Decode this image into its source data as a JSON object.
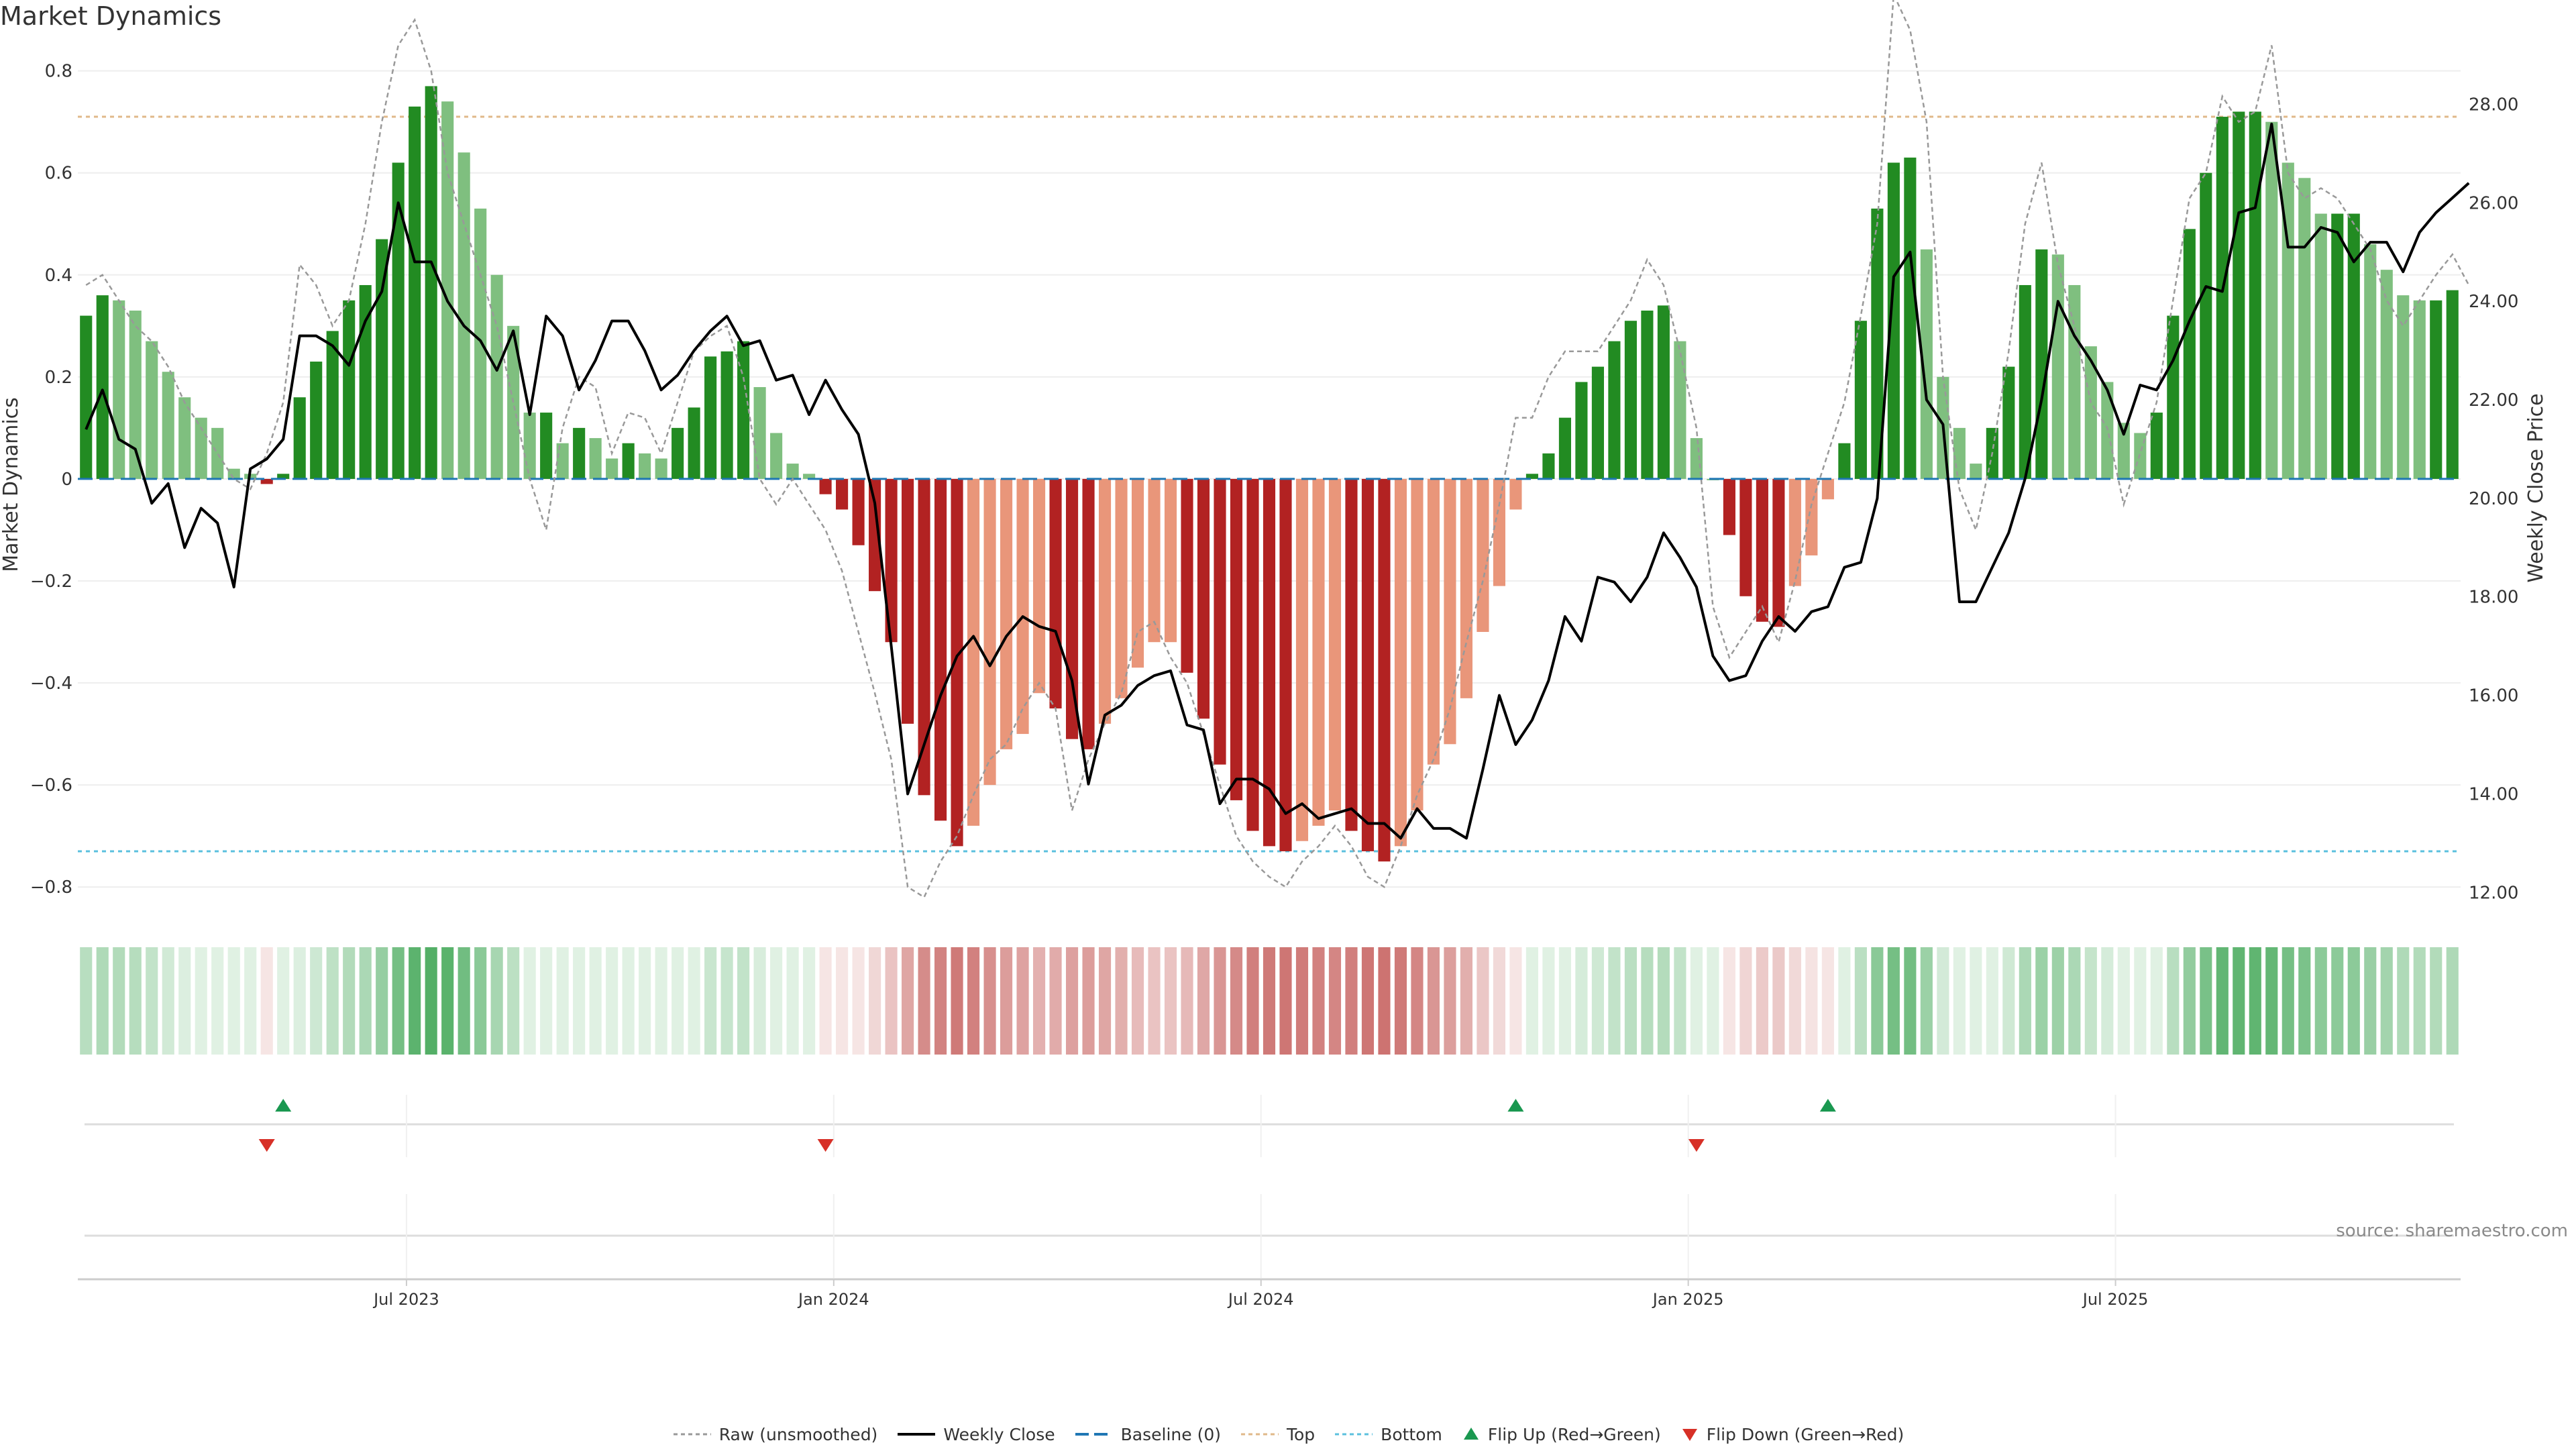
{
  "title": "Market Dynamics",
  "source": "source: sharemaestro.com",
  "chart_data": {
    "type": "bar",
    "title": "Market Dynamics",
    "ylabel": "Market Dynamics",
    "y2label": "Weekly Close Price",
    "ylim": [
      -0.83,
      0.86
    ],
    "y2lim": [
      11.8,
      29.3
    ],
    "yticks": [
      "0.8",
      "0.6",
      "0.4",
      "0.2",
      "0",
      "−0.2",
      "−0.4",
      "−0.6",
      "−0.8"
    ],
    "y2ticks": [
      "28.00",
      "26.00",
      "24.00",
      "22.00",
      "20.00",
      "18.00",
      "16.00",
      "14.00",
      "12.00"
    ],
    "top_threshold": 0.71,
    "bottom_threshold": -0.73,
    "baseline": 0,
    "x_ticks": [
      {
        "label": "Jul 2023",
        "week": 20
      },
      {
        "label": "Jan 2024",
        "week": 46
      },
      {
        "label": "Jul 2024",
        "week": 72
      },
      {
        "label": "Jan 2025",
        "week": 98
      },
      {
        "label": "Jul 2025",
        "week": 124
      }
    ],
    "dynamics": [
      0.32,
      0.36,
      0.35,
      0.33,
      0.27,
      0.21,
      0.16,
      0.12,
      0.1,
      0.02,
      0.01,
      -0.01,
      0.01,
      0.16,
      0.23,
      0.29,
      0.35,
      0.38,
      0.47,
      0.62,
      0.73,
      0.77,
      0.74,
      0.64,
      0.53,
      0.4,
      0.3,
      0.13,
      0.13,
      0.07,
      0.1,
      0.08,
      0.04,
      0.07,
      0.05,
      0.04,
      0.1,
      0.14,
      0.24,
      0.25,
      0.27,
      0.18,
      0.09,
      0.03,
      0.01,
      -0.03,
      -0.06,
      -0.13,
      -0.22,
      -0.32,
      -0.48,
      -0.62,
      -0.67,
      -0.72,
      -0.68,
      -0.6,
      -0.53,
      -0.5,
      -0.42,
      -0.45,
      -0.51,
      -0.53,
      -0.48,
      -0.43,
      -0.37,
      -0.32,
      -0.32,
      -0.38,
      -0.47,
      -0.56,
      -0.63,
      -0.69,
      -0.72,
      -0.73,
      -0.71,
      -0.68,
      -0.65,
      -0.69,
      -0.73,
      -0.75,
      -0.72,
      -0.65,
      -0.56,
      -0.52,
      -0.43,
      -0.3,
      -0.21,
      -0.06,
      0.01,
      0.05,
      0.12,
      0.19,
      0.22,
      0.27,
      0.31,
      0.33,
      0.34,
      0.27,
      0.08,
      0.0,
      -0.11,
      -0.23,
      -0.28,
      -0.29,
      -0.21,
      -0.15,
      -0.04,
      0.07,
      0.31,
      0.53,
      0.62,
      0.63,
      0.45,
      0.2,
      0.1,
      0.03,
      0.1,
      0.22,
      0.38,
      0.45,
      0.44,
      0.38,
      0.26,
      0.19,
      0.11,
      0.09,
      0.13,
      0.32,
      0.49,
      0.6,
      0.71,
      0.72,
      0.72,
      0.7,
      0.62,
      0.59,
      0.52,
      0.52,
      0.52,
      0.46,
      0.41,
      0.36,
      0.35,
      0.35,
      0.37
    ],
    "raw": [
      0.38,
      0.4,
      0.35,
      0.3,
      0.27,
      0.22,
      0.15,
      0.1,
      0.05,
      0.0,
      -0.02,
      0.05,
      0.15,
      0.42,
      0.38,
      0.3,
      0.35,
      0.5,
      0.7,
      0.85,
      0.9,
      0.8,
      0.6,
      0.5,
      0.4,
      0.3,
      0.15,
      0.0,
      -0.1,
      0.1,
      0.2,
      0.18,
      0.05,
      0.13,
      0.12,
      0.05,
      0.15,
      0.25,
      0.28,
      0.3,
      0.2,
      0.0,
      -0.05,
      0.0,
      -0.05,
      -0.1,
      -0.18,
      -0.3,
      -0.42,
      -0.55,
      -0.8,
      -0.82,
      -0.75,
      -0.7,
      -0.62,
      -0.55,
      -0.52,
      -0.45,
      -0.4,
      -0.45,
      -0.65,
      -0.55,
      -0.48,
      -0.42,
      -0.3,
      -0.28,
      -0.35,
      -0.4,
      -0.5,
      -0.6,
      -0.7,
      -0.75,
      -0.78,
      -0.8,
      -0.75,
      -0.72,
      -0.68,
      -0.72,
      -0.78,
      -0.8,
      -0.72,
      -0.62,
      -0.55,
      -0.45,
      -0.32,
      -0.2,
      -0.05,
      0.12,
      0.12,
      0.2,
      0.25,
      0.25,
      0.25,
      0.3,
      0.35,
      0.43,
      0.38,
      0.25,
      0.1,
      -0.25,
      -0.35,
      -0.3,
      -0.25,
      -0.32,
      -0.2,
      -0.05,
      0.05,
      0.15,
      0.32,
      0.5,
      0.95,
      0.88,
      0.7,
      0.2,
      -0.02,
      -0.1,
      0.05,
      0.25,
      0.5,
      0.62,
      0.42,
      0.3,
      0.15,
      0.1,
      -0.05,
      0.05,
      0.15,
      0.35,
      0.55,
      0.6,
      0.75,
      0.7,
      0.72,
      0.85,
      0.6,
      0.55,
      0.57,
      0.55,
      0.5,
      0.45,
      0.35,
      0.3,
      0.35,
      0.4,
      0.44,
      0.38
    ],
    "weekly_close": [
      21.4,
      22.2,
      21.2,
      21.0,
      19.9,
      20.3,
      19.0,
      19.8,
      19.5,
      18.2,
      20.6,
      20.8,
      21.2,
      23.3,
      23.3,
      23.1,
      22.7,
      23.6,
      24.2,
      26.0,
      24.8,
      24.8,
      24.0,
      23.5,
      23.2,
      22.6,
      23.4,
      21.7,
      23.7,
      23.3,
      22.2,
      22.8,
      23.6,
      23.6,
      23.0,
      22.2,
      22.5,
      23.0,
      23.4,
      23.7,
      23.1,
      23.2,
      22.4,
      22.5,
      21.7,
      22.4,
      21.8,
      21.3,
      19.9,
      17.0,
      14.0,
      15.0,
      16.0,
      16.8,
      17.2,
      16.6,
      17.2,
      17.6,
      17.4,
      17.3,
      16.3,
      14.2,
      15.6,
      15.8,
      16.2,
      16.4,
      16.5,
      15.4,
      15.3,
      13.8,
      14.3,
      14.3,
      14.1,
      13.6,
      13.8,
      13.5,
      13.6,
      13.7,
      13.4,
      13.4,
      13.1,
      13.7,
      13.3,
      13.3,
      13.1,
      14.5,
      16.0,
      15.0,
      15.5,
      16.3,
      17.6,
      17.1,
      18.4,
      18.3,
      17.9,
      18.4,
      19.3,
      18.8,
      18.2,
      16.8,
      16.3,
      16.4,
      17.1,
      17.6,
      17.3,
      17.7,
      17.8,
      18.6,
      18.7,
      20.0,
      24.5,
      25.0,
      22.0,
      21.5,
      17.9,
      17.9,
      18.6,
      19.3,
      20.4,
      22.0,
      24.0,
      23.3,
      22.8,
      22.2,
      21.3,
      22.3,
      22.2,
      22.8,
      23.6,
      24.3,
      24.2,
      25.8,
      25.9,
      27.6,
      25.1,
      25.1,
      25.5,
      25.4,
      24.8,
      25.2,
      25.2,
      24.6,
      25.4,
      25.8,
      26.1,
      26.4
    ],
    "flips_up": [
      12,
      87,
      106
    ],
    "flips_down": [
      11,
      45,
      98
    ],
    "colors": {
      "strong_green": "#228b22",
      "light_green": "#7fbf7f",
      "strong_red": "#b22222",
      "light_red": "#e9967a",
      "weekly_close": "#000000",
      "raw": "#999999",
      "baseline": "#1f77b4",
      "top": "#e0b98a",
      "bottom": "#5bc0de",
      "flip_up": "#1a9850",
      "flip_down": "#d73027"
    },
    "legend": [
      {
        "label": "Raw (unsmoothed)",
        "kind": "raw"
      },
      {
        "label": "Weekly Close",
        "kind": "close"
      },
      {
        "label": "Baseline (0)",
        "kind": "baseline"
      },
      {
        "label": "Top",
        "kind": "top"
      },
      {
        "label": "Bottom",
        "kind": "bottom"
      },
      {
        "label": "Flip Up (Red→Green)",
        "kind": "up"
      },
      {
        "label": "Flip Down (Green→Red)",
        "kind": "down"
      }
    ]
  }
}
